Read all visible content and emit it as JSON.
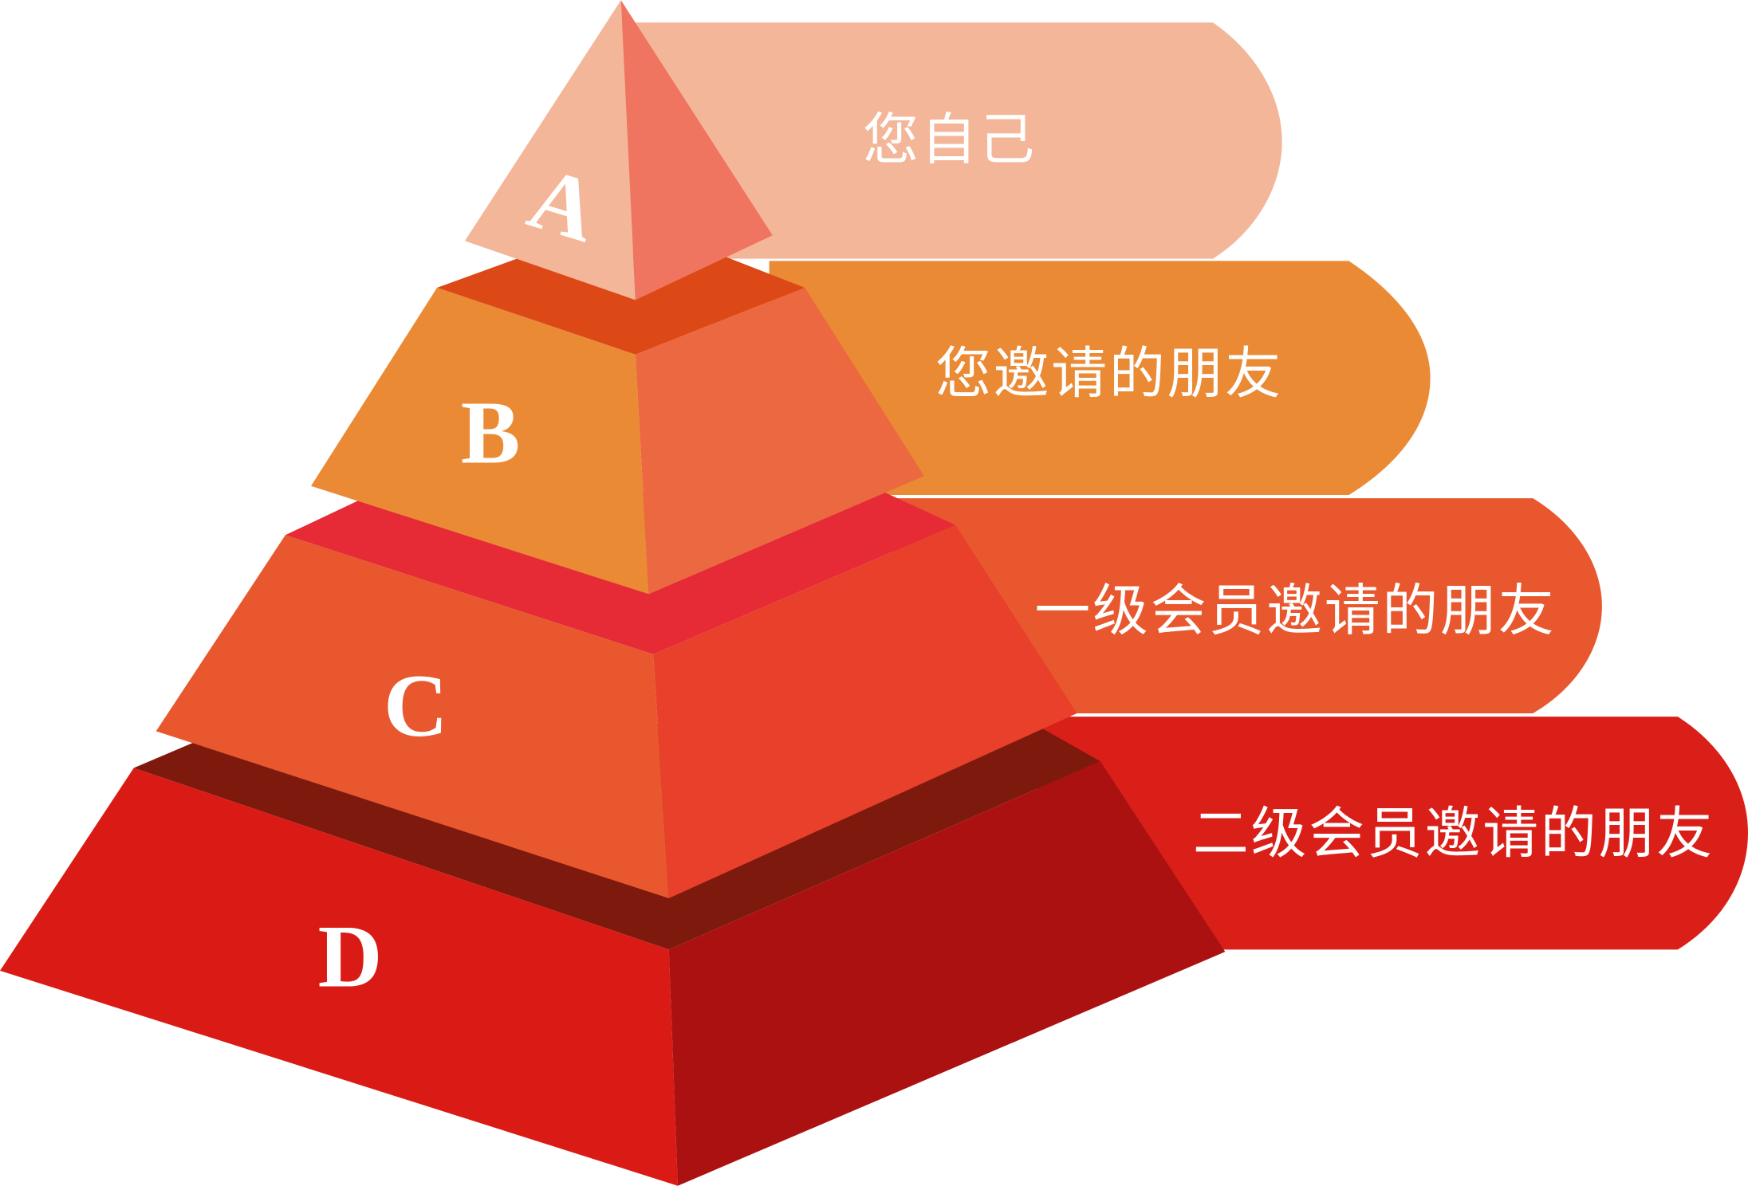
{
  "levels": [
    {
      "letter": "A",
      "label": "您自己",
      "banner_color": "#F4B698",
      "face_left_color": "#F4B698",
      "face_right_color": "#EF7560",
      "top_color": ""
    },
    {
      "letter": "B",
      "label": "您邀请的朋友",
      "banner_color": "#EA8A35",
      "face_left_color": "#EA8A35",
      "face_right_color": "#EC6840",
      "top_color": "#DD4916"
    },
    {
      "letter": "C",
      "label": "一级会员邀请的朋友",
      "banner_color": "#E8572D",
      "face_left_color": "#E8572D",
      "face_right_color": "#E8402A",
      "top_color": "#E62A36"
    },
    {
      "letter": "D",
      "label": "二级会员邀请的朋友",
      "banner_color": "#DA1F19",
      "face_left_color": "#DA1B15",
      "face_right_color": "#AC1112",
      "top_color": "#7E1A0D"
    }
  ]
}
